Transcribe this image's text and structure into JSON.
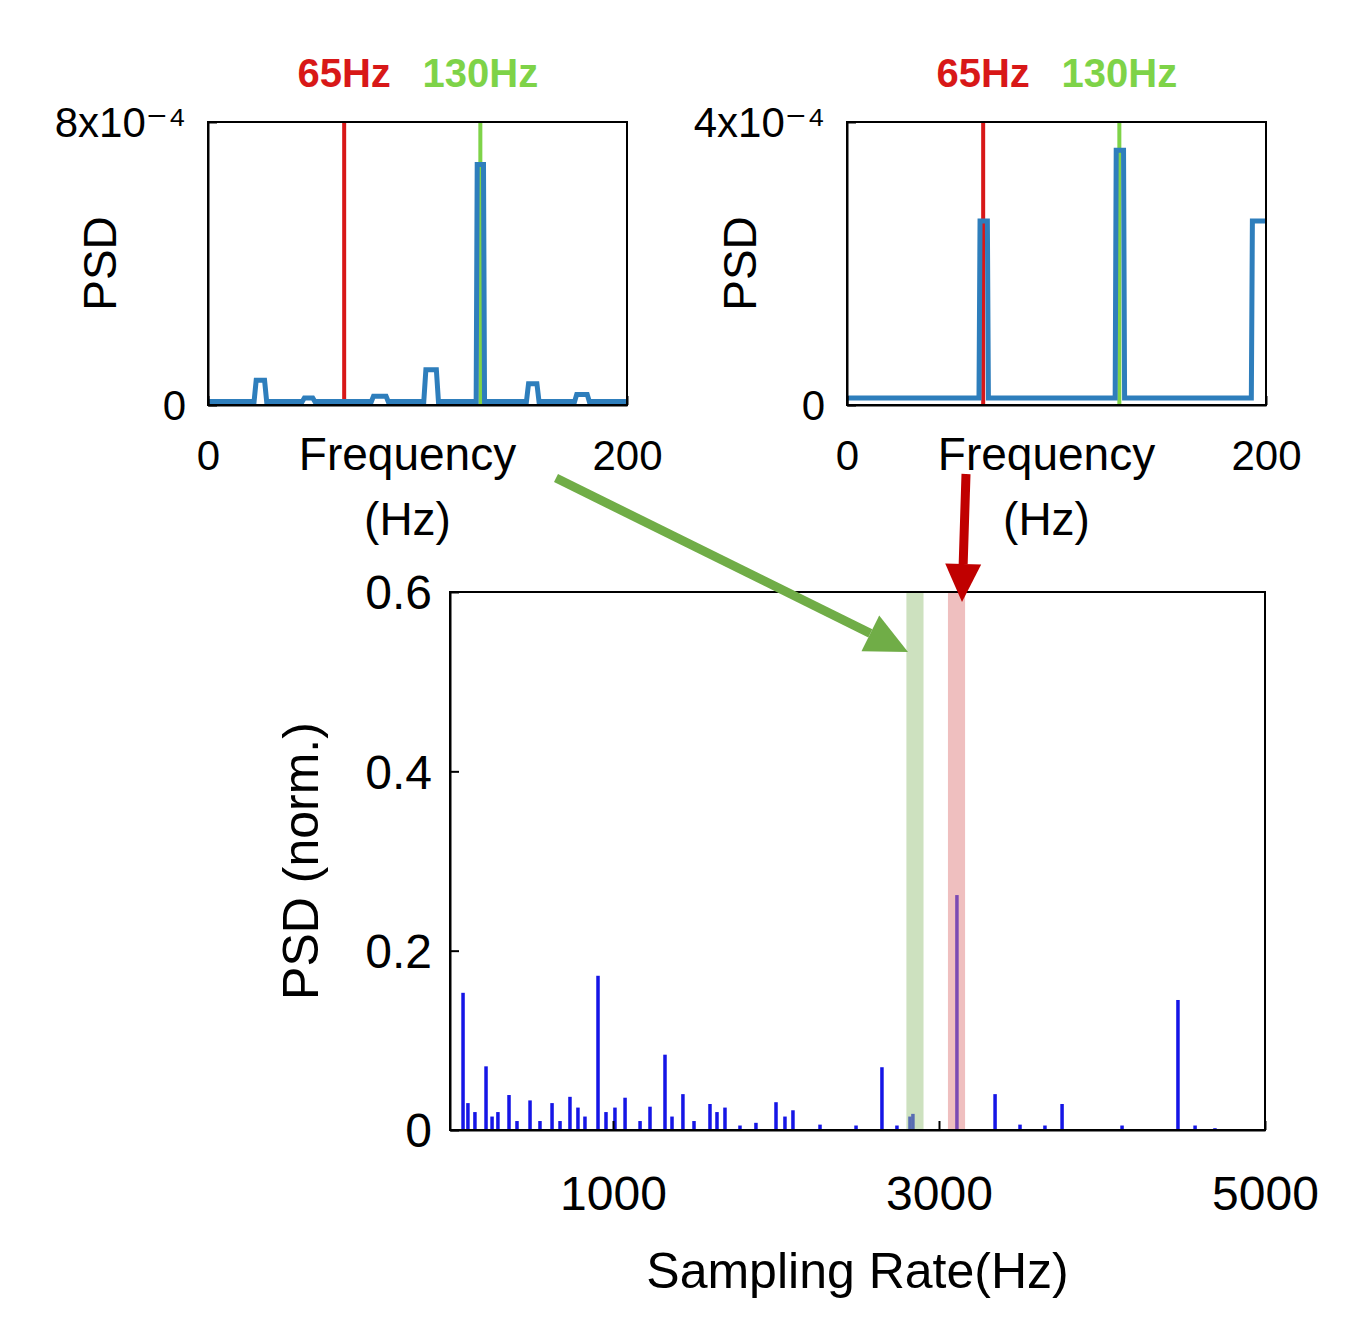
{
  "chart_data": [
    {
      "type": "line",
      "xlabel": "Frequency (Hz)",
      "ylabel": "PSD",
      "color": "#2e7ebc",
      "x": [
        0,
        22,
        23,
        27,
        28,
        45,
        46,
        50,
        51,
        78,
        79,
        85,
        86,
        103,
        104,
        109,
        110,
        128,
        128.5,
        131.5,
        132,
        152,
        153,
        157,
        158,
        175,
        176,
        181,
        182,
        200
      ],
      "values": [
        1e-05,
        1e-05,
        7e-05,
        7e-05,
        1e-05,
        1e-05,
        2e-05,
        2e-05,
        1e-05,
        1e-05,
        2.5e-05,
        2.5e-05,
        1e-05,
        1e-05,
        0.0001,
        0.0001,
        1e-05,
        1e-05,
        0.00068,
        0.00068,
        1e-05,
        1e-05,
        6e-05,
        6e-05,
        1e-05,
        1e-05,
        3e-05,
        3e-05,
        1e-05,
        1e-05
      ],
      "xlim": [
        0,
        200
      ],
      "ylim": [
        0,
        0.0008
      ],
      "xticks": [
        0,
        200
      ],
      "yticks": [
        0,
        {
          "value": 0.0008,
          "label": "8x10⁻⁴"
        }
      ],
      "annotations": [
        {
          "x": 65,
          "text": "65Hz",
          "color": "#d81818"
        },
        {
          "x": 130,
          "text": "130Hz",
          "color": "#7ed348"
        }
      ]
    },
    {
      "type": "line",
      "xlabel": "Frequency (Hz)",
      "ylabel": "PSD",
      "color": "#2e7ebc",
      "x": [
        0,
        63,
        63.5,
        67,
        67.5,
        128,
        128.5,
        132,
        132.5,
        193,
        193.5,
        200
      ],
      "values": [
        1e-05,
        1e-05,
        0.00026,
        0.00026,
        1e-05,
        1e-05,
        0.00036,
        0.00036,
        1e-05,
        1e-05,
        0.00026,
        0.00026
      ],
      "xlim": [
        0,
        200
      ],
      "ylim": [
        0,
        0.0004
      ],
      "xticks": [
        0,
        200
      ],
      "yticks": [
        0,
        {
          "value": 0.0004,
          "label": "4x10⁻⁴"
        }
      ],
      "annotations": [
        {
          "x": 65,
          "text": "65Hz",
          "color": "#d81818"
        },
        {
          "x": 130,
          "text": "130Hz",
          "color": "#7ed348"
        }
      ]
    },
    {
      "type": "bar",
      "xlabel": "Sampling Rate(Hz)",
      "ylabel": "PSD (norm.)",
      "color": "#1515e6",
      "x": [
        80,
        110,
        153,
        221,
        258,
        294,
        362,
        411,
        491,
        552,
        626,
        675,
        736,
        785,
        828,
        908,
        957,
        1012,
        1074,
        1166,
        1227,
        1319,
        1362,
        1429,
        1497,
        1595,
        1638,
        1687,
        1779,
        1877,
        2000,
        2055,
        2104,
        2270,
        2491,
        2650,
        2742,
        2822,
        2840,
        3110,
        3344,
        3497,
        3650,
        3755,
        4123,
        4466,
        4571,
        4693
      ],
      "values": [
        0.153,
        0.03,
        0.02,
        0.071,
        0.015,
        0.02,
        0.039,
        0.01,
        0.033,
        0.01,
        0.03,
        0.01,
        0.037,
        0.025,
        0.015,
        0.172,
        0.02,
        0.025,
        0.036,
        0.01,
        0.026,
        0.084,
        0.015,
        0.04,
        0.01,
        0.029,
        0.02,
        0.025,
        0.005,
        0.008,
        0.031,
        0.015,
        0.022,
        0.006,
        0.005,
        0.07,
        0.005,
        0.015,
        0.018,
        0.262,
        0.04,
        0.006,
        0.005,
        0.029,
        0.005,
        0.145,
        0.005,
        0.002
      ],
      "xlim": [
        0,
        5000
      ],
      "ylim": [
        0,
        0.6
      ],
      "xticks": [
        1000,
        3000,
        5000
      ],
      "yticks": [
        0,
        0.2,
        0.4,
        0.6
      ],
      "bands": [
        {
          "x0": 2800,
          "x1": 2905,
          "color": "#9bc47f"
        },
        {
          "x0": 3055,
          "x1": 3160,
          "color": "#e07f7f"
        }
      ]
    }
  ]
}
